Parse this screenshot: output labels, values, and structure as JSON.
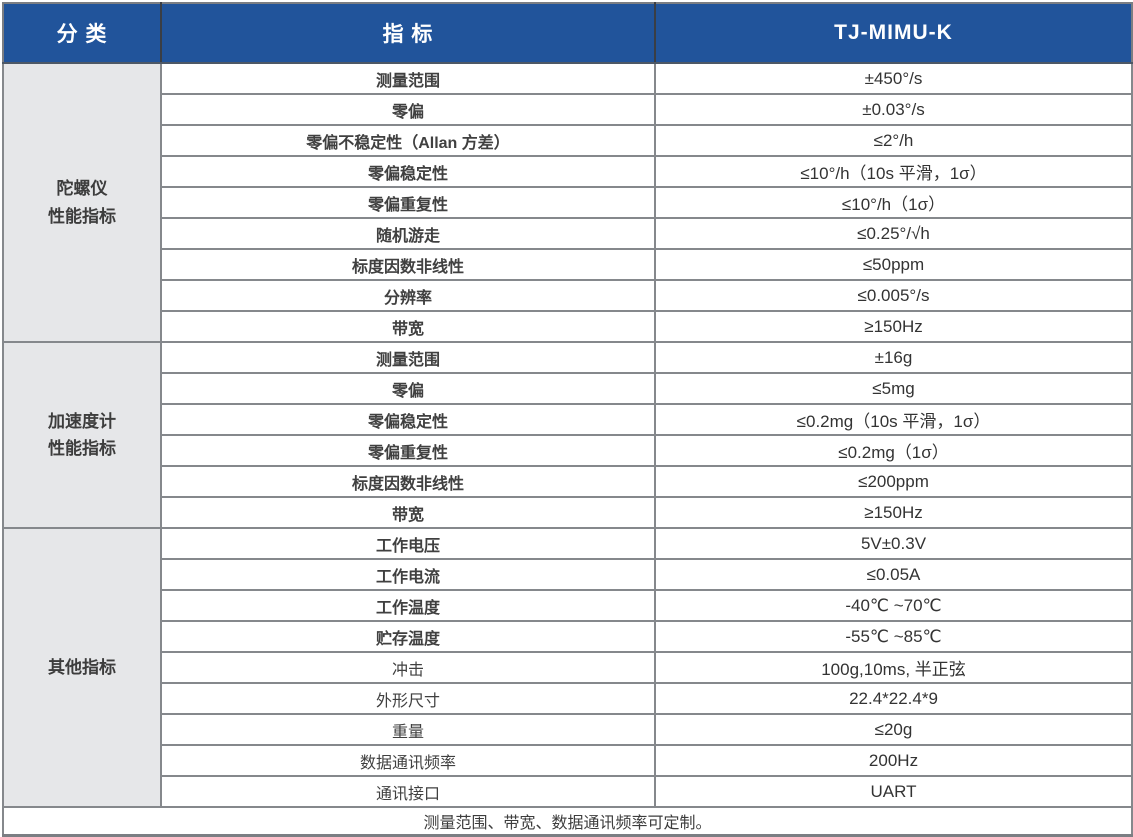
{
  "colors": {
    "header_bg": "#21549b",
    "header_text": "#ffffff",
    "category_bg": "#e6e7e9",
    "grid_border": "#85888c",
    "outer_border": "#7b7e83",
    "header_divider": "#3a3e45"
  },
  "table": {
    "headers": [
      {
        "label": "分 类"
      },
      {
        "label": "指 标"
      },
      {
        "label": "TJ-MIMU-K"
      }
    ],
    "sections": [
      {
        "category_lines": [
          "陀螺仪",
          "性能指标"
        ],
        "rows": [
          {
            "label": "测量范围",
            "value": "±450°/s",
            "bold": true
          },
          {
            "label": "零偏",
            "value": "±0.03°/s",
            "bold": true
          },
          {
            "label": "零偏不稳定性（Allan 方差）",
            "value": "≤2°/h",
            "bold": true
          },
          {
            "label": "零偏稳定性",
            "value": "≤10°/h（10s 平滑，1σ）",
            "bold": true
          },
          {
            "label": "零偏重复性",
            "value": "≤10°/h（1σ）",
            "bold": true
          },
          {
            "label": "随机游走",
            "value": "≤0.25°/√h",
            "bold": true
          },
          {
            "label": "标度因数非线性",
            "value": "≤50ppm",
            "bold": true
          },
          {
            "label": "分辨率",
            "value": "≤0.005°/s",
            "bold": true
          },
          {
            "label": "带宽",
            "value": "≥150Hz",
            "bold": true
          }
        ]
      },
      {
        "category_lines": [
          "加速度计",
          "性能指标"
        ],
        "rows": [
          {
            "label": "测量范围",
            "value": "±16g",
            "bold": true
          },
          {
            "label": "零偏",
            "value": "≤5mg",
            "bold": true
          },
          {
            "label": "零偏稳定性",
            "value": "≤0.2mg（10s 平滑，1σ）",
            "bold": true
          },
          {
            "label": "零偏重复性",
            "value": "≤0.2mg（1σ）",
            "bold": true
          },
          {
            "label": "标度因数非线性",
            "value": "≤200ppm",
            "bold": true
          },
          {
            "label": "带宽",
            "value": "≥150Hz",
            "bold": true
          }
        ]
      },
      {
        "category_lines": [
          "其他指标"
        ],
        "rows": [
          {
            "label": "工作电压",
            "value": "5V±0.3V",
            "bold": true
          },
          {
            "label": "工作电流",
            "value": "≤0.05A",
            "bold": true
          },
          {
            "label": "工作温度",
            "value": "-40℃ ~70℃",
            "bold": true
          },
          {
            "label": "贮存温度",
            "value": "-55℃ ~85℃",
            "bold": true
          },
          {
            "label": "冲击",
            "value": "100g,10ms, 半正弦",
            "bold": false
          },
          {
            "label": "外形尺寸",
            "value": "22.4*22.4*9",
            "bold": false
          },
          {
            "label": "重量",
            "value": "≤20g",
            "bold": false
          },
          {
            "label": "数据通讯频率",
            "value": "200Hz",
            "bold": false
          },
          {
            "label": "通讯接口",
            "value": "UART",
            "bold": false
          }
        ]
      }
    ],
    "footer_note": "测量范围、带宽、数据通讯频率可定制。"
  }
}
